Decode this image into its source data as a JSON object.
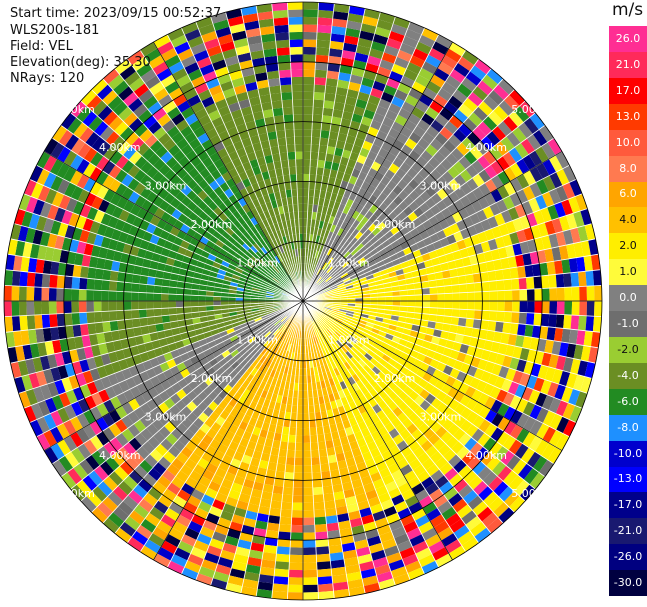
{
  "header": {
    "start_time": "Start time: 2023/09/15 00:52:37",
    "instrument": "WLS200s-181",
    "field": "Field: VEL",
    "elevation": "Elevation(deg): 35.30",
    "nrays": "NRays: 120"
  },
  "chart_data": {
    "type": "polar-ppi",
    "field": "VEL",
    "nrays": 120,
    "range_ring_labels": [
      "1.00km",
      "2.00km",
      "3.00km",
      "4.00km",
      "5.00km"
    ],
    "range_rings_km": [
      1,
      2,
      3,
      4,
      5
    ],
    "max_range_km": 5.0,
    "colorbar": {
      "unit": "m/s",
      "ticks": [
        "26.0",
        "21.0",
        "17.0",
        "13.0",
        "10.0",
        "8.0",
        "6.0",
        "4.0",
        "2.0",
        "1.0",
        "0.0",
        "-1.0",
        "-2.0",
        "-4.0",
        "-6.0",
        "-8.0",
        "-10.0",
        "-13.0",
        "-17.0",
        "-21.0",
        "-26.0",
        "-30.0"
      ],
      "colors": [
        "#ff2e93",
        "#ff2a5a",
        "#ff0000",
        "#ff3a00",
        "#ff5a3c",
        "#ff7a50",
        "#ffa500",
        "#ffc000",
        "#ffee00",
        "#fffb3a",
        "#808080",
        "#6e6e6e",
        "#9acd32",
        "#6b8e23",
        "#228b22",
        "#1e90ff",
        "#0000cd",
        "#0000ff",
        "#00008b",
        "#191970",
        "#000080",
        "#000040"
      ]
    },
    "sectors": [
      {
        "from_deg": 270,
        "to_deg": 330,
        "velocity_class": "-6.0"
      },
      {
        "from_deg": 330,
        "to_deg": 20,
        "velocity_class": "-4.0"
      },
      {
        "from_deg": 20,
        "to_deg": 70,
        "velocity_class": "0.0"
      },
      {
        "from_deg": 70,
        "to_deg": 160,
        "velocity_class": "2.0"
      },
      {
        "from_deg": 160,
        "to_deg": 220,
        "velocity_class": "4.0"
      },
      {
        "from_deg": 220,
        "to_deg": 250,
        "velocity_class": "0.0"
      },
      {
        "from_deg": 250,
        "to_deg": 270,
        "velocity_class": "-4.0"
      }
    ]
  }
}
